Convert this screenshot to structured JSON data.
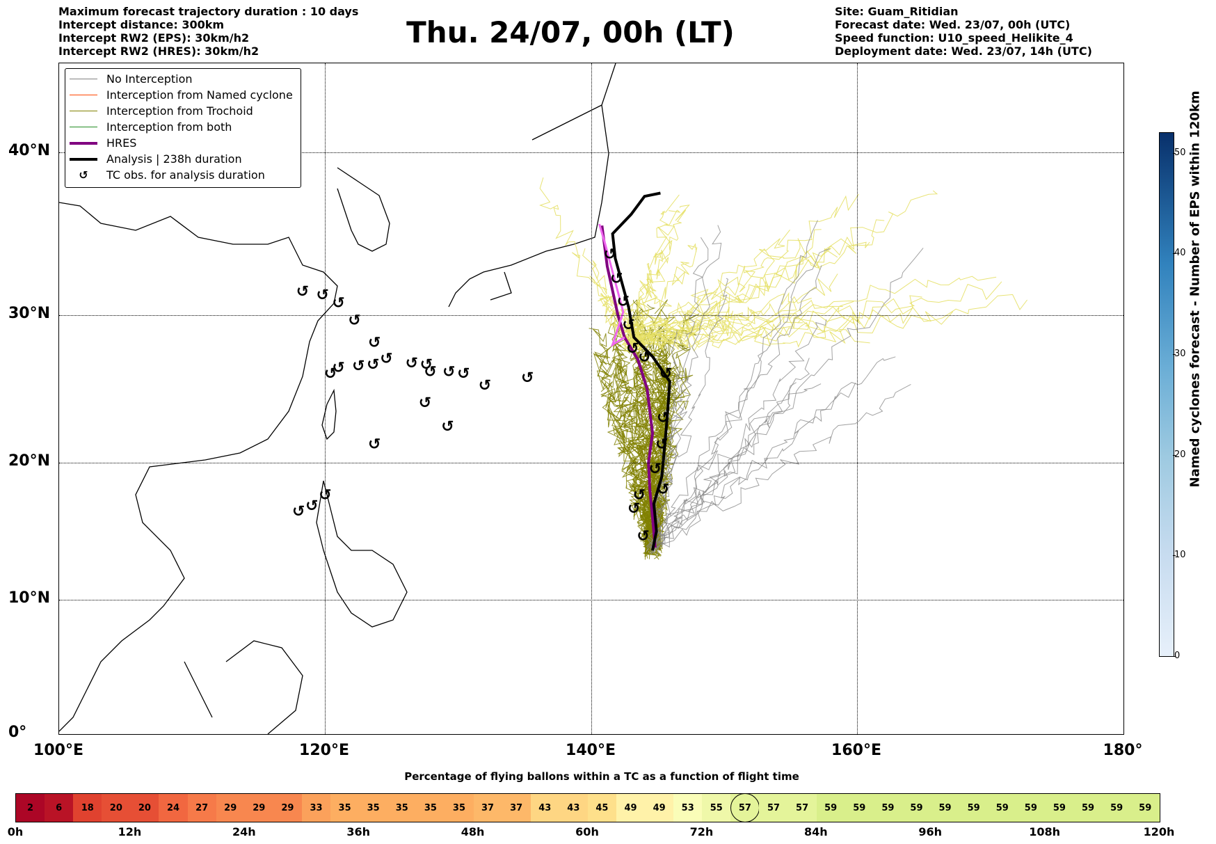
{
  "header_left": [
    "Maximum forecast trajectory duration : 10 days",
    "Intercept distance: 300km",
    "Intercept RW2 (EPS):  30km/h2",
    "Intercept RW2 (HRES): 30km/h2"
  ],
  "title": "Thu. 24/07, 00h (LT)",
  "header_right": [
    "Site: Guam_Ritidian",
    "Forecast date: Wed. 23/07, 00h (UTC)",
    "Speed function: U10_speed_Helikite_4",
    "Deployment date: Wed. 23/07, 14h (UTC)"
  ],
  "map": {
    "lat_labels": [
      "40°N",
      "30°N",
      "20°N",
      "10°N",
      "0°"
    ],
    "lon_labels": [
      "100°E",
      "120°E",
      "140°E",
      "160°E",
      "180°"
    ],
    "lon_range": [
      100,
      180
    ],
    "lat_range": [
      0,
      45
    ]
  },
  "legend": [
    {
      "label": "No Interception",
      "color": "#808080",
      "width": 1
    },
    {
      "label": "Interception from Named cyclone",
      "color": "#ff4500",
      "width": 1
    },
    {
      "label": "Interception from Trochoid",
      "color": "#808000",
      "width": 1
    },
    {
      "label": "Interception from both",
      "color": "#228b22",
      "width": 1
    },
    {
      "label": "HRES",
      "color": "#800080",
      "width": 4
    },
    {
      "label": "Analysis | 238h duration",
      "color": "#000000",
      "width": 4
    },
    {
      "label": "TC obs. for analysis duration",
      "color": "#000000",
      "width": 0,
      "icon": "cyclone-icon"
    }
  ],
  "colorbar": {
    "title": "Named cyclones forecast - Number of EPS within 120km",
    "ticks": [
      "50",
      "40",
      "30",
      "20",
      "10",
      "0"
    ],
    "range": [
      0,
      52
    ]
  },
  "strip": {
    "title": "Percentage of flying ballons within a TC as a function of flight time",
    "values": [
      2,
      6,
      18,
      20,
      20,
      24,
      27,
      29,
      29,
      29,
      33,
      35,
      35,
      35,
      35,
      35,
      37,
      37,
      43,
      43,
      45,
      49,
      49,
      53,
      55,
      57,
      57,
      57,
      59,
      59,
      59,
      59,
      59,
      59,
      59,
      59,
      59,
      59,
      59,
      59
    ],
    "current_index": 25,
    "time_labels": [
      "0h",
      "12h",
      "24h",
      "36h",
      "48h",
      "60h",
      "72h",
      "84h",
      "96h",
      "108h",
      "120h"
    ]
  },
  "tc_obs": [
    [
      118.3,
      31.4
    ],
    [
      119.8,
      31.2
    ],
    [
      121.0,
      30.7
    ],
    [
      122.2,
      29.6
    ],
    [
      123.7,
      28.1
    ],
    [
      124.6,
      27.0
    ],
    [
      123.6,
      26.6
    ],
    [
      122.5,
      26.5
    ],
    [
      121.0,
      26.4
    ],
    [
      120.4,
      26.0
    ],
    [
      126.5,
      26.7
    ],
    [
      127.6,
      26.6
    ],
    [
      127.9,
      26.1
    ],
    [
      129.3,
      26.1
    ],
    [
      130.4,
      26.0
    ],
    [
      132.0,
      25.2
    ],
    [
      135.2,
      25.7
    ],
    [
      127.5,
      24.0
    ],
    [
      129.2,
      22.4
    ],
    [
      123.7,
      21.2
    ],
    [
      118.0,
      16.4
    ],
    [
      119.0,
      16.8
    ],
    [
      120.0,
      17.6
    ],
    [
      141.4,
      33.7
    ],
    [
      141.9,
      32.2
    ],
    [
      142.4,
      30.8
    ],
    [
      142.8,
      29.3
    ],
    [
      143.1,
      27.7
    ],
    [
      144.0,
      27.1
    ],
    [
      145.6,
      26.0
    ],
    [
      145.4,
      23.0
    ],
    [
      145.3,
      21.2
    ],
    [
      144.8,
      19.5
    ],
    [
      145.4,
      18.0
    ],
    [
      143.6,
      17.6
    ],
    [
      143.2,
      16.6
    ],
    [
      143.9,
      14.6
    ]
  ]
}
